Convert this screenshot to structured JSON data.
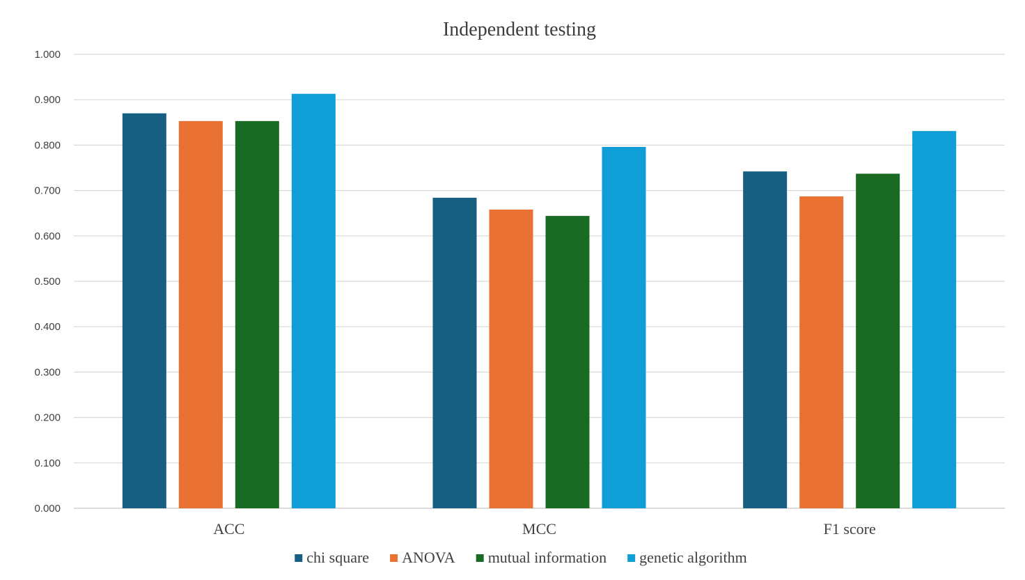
{
  "chart_data": {
    "type": "bar",
    "title": "Independent testing",
    "xlabel": "",
    "ylabel": "",
    "categories": [
      "ACC",
      "MCC",
      "F1 score"
    ],
    "series": [
      {
        "name": "chi square",
        "color": "#175e83",
        "values": [
          0.87,
          0.684,
          0.742
        ]
      },
      {
        "name": "ANOVA",
        "color": "#e97132",
        "values": [
          0.853,
          0.658,
          0.687
        ]
      },
      {
        "name": "mutual information",
        "color": "#196b24",
        "values": [
          0.853,
          0.644,
          0.737
        ]
      },
      {
        "name": "genetic algorithm",
        "color": "#0f9ed5",
        "values": [
          0.913,
          0.796,
          0.831
        ]
      }
    ],
    "ylim": [
      0,
      1
    ],
    "yticks": [
      "0.000",
      "0.100",
      "0.200",
      "0.300",
      "0.400",
      "0.500",
      "0.600",
      "0.700",
      "0.800",
      "0.900",
      "1.000"
    ],
    "grid": true,
    "legend_position": "bottom"
  }
}
